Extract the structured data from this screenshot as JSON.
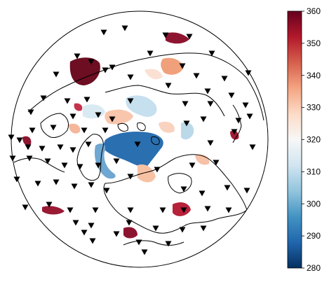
{
  "colorbar": {
    "min": 280,
    "max": 360,
    "ticks": [
      {
        "value": 360,
        "label": "360"
      },
      {
        "value": 350,
        "label": "350"
      },
      {
        "value": 340,
        "label": "340"
      },
      {
        "value": 330,
        "label": "330"
      },
      {
        "value": 320,
        "label": "320"
      },
      {
        "value": 310,
        "label": "310"
      },
      {
        "value": 300,
        "label": "300"
      },
      {
        "value": 290,
        "label": "290"
      },
      {
        "value": 280,
        "label": "280"
      }
    ],
    "colormap": [
      "#053061",
      "#2166ac",
      "#4393c3",
      "#92c5de",
      "#d1e5f0",
      "#f7f7f7",
      "#fddbc7",
      "#f4a582",
      "#d6604d",
      "#b2182b",
      "#67001f"
    ]
  },
  "marker": {
    "shape": "inverted-triangle",
    "color": "#000000"
  },
  "projection": "orthographic-north-polar"
}
